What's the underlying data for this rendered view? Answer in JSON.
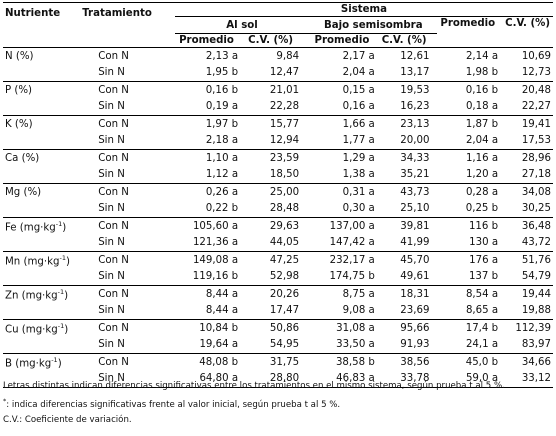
{
  "headers": {
    "sistema": "Sistema",
    "nutriente": "Nutriente",
    "tratamiento": "Tratamiento",
    "al_sol": "Al sol",
    "bajo_semisombra": "Bajo semisombra",
    "promedio": "Promedio",
    "cv": "C.V. (%)",
    "sub_promedio": "Promedio",
    "sub_cv": "C.V. (%)"
  },
  "rows": [
    {
      "nutriente": "N (%)",
      "data": [
        {
          "trat": "Con N",
          "sol_p": "2,13 a",
          "sol_cv": "9,84",
          "som_p": "2,17 a",
          "som_cv": "12,61",
          "prom": "2,14 a",
          "cv": "10,69"
        },
        {
          "trat": "Sin N",
          "sol_p": "1,95 b",
          "sol_cv": "12,47",
          "som_p": "2,04 a",
          "som_cv": "13,17",
          "prom": "1,98 b",
          "cv": "12,73"
        }
      ]
    },
    {
      "nutriente": "P (%)",
      "data": [
        {
          "trat": "Con N",
          "sol_p": "0,16 b",
          "sol_cv": "21,01",
          "som_p": "0,15 a",
          "som_cv": "19,53",
          "prom": "0,16 b",
          "cv": "20,48"
        },
        {
          "trat": "Sin N",
          "sol_p": "0,19 a",
          "sol_cv": "22,28",
          "som_p": "0,16 a",
          "som_cv": "16,23",
          "prom": "0,18 a",
          "cv": "22,27"
        }
      ]
    },
    {
      "nutriente": "K (%)",
      "data": [
        {
          "trat": "Con N",
          "sol_p": "1,97 b",
          "sol_cv": "15,77",
          "som_p": "1,66 a",
          "som_cv": "23,13",
          "prom": "1,87 b",
          "cv": "19,41"
        },
        {
          "trat": "Sin N",
          "sol_p": "2,18 a",
          "sol_cv": "12,94",
          "som_p": "1,77 a",
          "som_cv": "20,00",
          "prom": "2,04 a",
          "cv": "17,53"
        }
      ]
    },
    {
      "nutriente": "Ca (%)",
      "data": [
        {
          "trat": "Con N",
          "sol_p": "1,10 a",
          "sol_cv": "23,59",
          "som_p": "1,29 a",
          "som_cv": "34,33",
          "prom": "1,16 a",
          "cv": "28,96"
        },
        {
          "trat": "Sin N",
          "sol_p": "1,12 a",
          "sol_cv": "18,50",
          "som_p": "1,38 a",
          "som_cv": "35,21",
          "prom": "1,20 a",
          "cv": "27,18"
        }
      ]
    },
    {
      "nutriente": "Mg (%)",
      "data": [
        {
          "trat": "Con N",
          "sol_p": "0,26 a",
          "sol_cv": "25,00",
          "som_p": "0,31 a",
          "som_cv": "43,73",
          "prom": "0,28 a",
          "cv": "34,08"
        },
        {
          "trat": "Sin N",
          "sol_p": "0,22 b",
          "sol_cv": "28,48",
          "som_p": "0,30 a",
          "som_cv": "25,10",
          "prom": "0,25 b",
          "cv": "30,25"
        }
      ]
    },
    {
      "nutriente": "Fe (mg·kg",
      "sup": "-1",
      "close": ")",
      "data": [
        {
          "trat": "Con N",
          "sol_p": "105,60 a",
          "sol_cv": "29,63",
          "som_p": "137,00 a",
          "som_cv": "39,81",
          "prom": "116 b",
          "cv": "36,48"
        },
        {
          "trat": "Sin N",
          "sol_p": "121,36 a",
          "sol_cv": "44,05",
          "som_p": "147,42 a",
          "som_cv": "41,99",
          "prom": "130 a",
          "cv": "43,72"
        }
      ]
    },
    {
      "nutriente": "Mn (mg·kg",
      "sup": "-1",
      "close": ")",
      "data": [
        {
          "trat": "Con N",
          "sol_p": "149,08 a",
          "sol_cv": "47,25",
          "som_p": "232,17 a",
          "som_cv": "45,70",
          "prom": "176 a",
          "cv": "51,76"
        },
        {
          "trat": "Sin N",
          "sol_p": "119,16 b",
          "sol_cv": "52,98",
          "som_p": "174,75 b",
          "som_cv": "49,61",
          "prom": "137 b",
          "cv": "54,79"
        }
      ]
    },
    {
      "nutriente": "Zn (mg·kg",
      "sup": "-1",
      "close": ")",
      "data": [
        {
          "trat": "Con N",
          "sol_p": "8,44 a",
          "sol_cv": "20,26",
          "som_p": "8,75 a",
          "som_cv": "18,31",
          "prom": "8,54 a",
          "cv": "19,44"
        },
        {
          "trat": "Sin N",
          "sol_p": "8,44 a",
          "sol_cv": "17,47",
          "som_p": "9,08 a",
          "som_cv": "23,69",
          "prom": "8,65 a",
          "cv": "19,88"
        }
      ]
    },
    {
      "nutriente": "Cu (mg·kg",
      "sup": "-1",
      "close": ")",
      "data": [
        {
          "trat": "Con N",
          "sol_p": "10,84 b",
          "sol_cv": "50,86",
          "som_p": "31,08 a",
          "som_cv": "95,66",
          "prom": "17,4 b",
          "cv": "112,39"
        },
        {
          "trat": "Sin N",
          "sol_p": "19,64 a",
          "sol_cv": "54,95",
          "som_p": "33,50 a",
          "som_cv": "91,93",
          "prom": "24,1 a",
          "cv": "83,97"
        }
      ]
    },
    {
      "nutriente": "B (mg·kg",
      "sup": "-1",
      "close": ")",
      "data": [
        {
          "trat": "Con N",
          "sol_p": "48,08 b",
          "sol_cv": "31,75",
          "som_p": "38,58 b",
          "som_cv": "38,56",
          "prom": "45,0 b",
          "cv": "34,66"
        },
        {
          "trat": "Sin N",
          "sol_p": "64,80 a",
          "sol_cv": "28,80",
          "som_p": "46,83 a",
          "som_cv": "33,78",
          "prom": "59,0 a",
          "cv": "33,12"
        }
      ]
    }
  ],
  "notes": {
    "line1": "Letras distintas indican diferencias significativas entre los tratamientos en el mismo sistema, según prueba t al 5 %.",
    "line2_star": "*",
    "line2": ": indica diferencias significativas frente al valor inicial, según prueba t al 5 %.",
    "line3": "C.V.: Coeficiente de variación."
  }
}
